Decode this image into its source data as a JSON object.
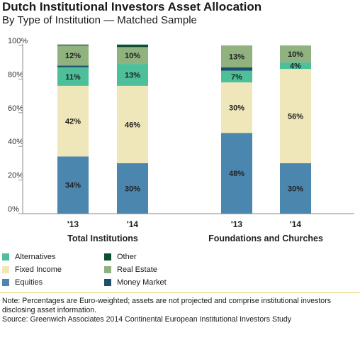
{
  "chart_data": {
    "type": "bar",
    "stacked": true,
    "title": "Dutch Institutional Investors Asset Allocation",
    "subtitle": "By Type of Institution — Matched Sample",
    "ylim": [
      0,
      100
    ],
    "yticks": [
      "0%",
      "20%",
      "40%",
      "60%",
      "80%",
      "100%"
    ],
    "groups": [
      {
        "label": "Total Institutions",
        "categories": [
          "'13",
          "'14"
        ]
      },
      {
        "label": "Foundations and Churches",
        "categories": [
          "'13",
          "'14"
        ]
      }
    ],
    "categories": [
      "Total Institutions '13",
      "Total Institutions '14",
      "Foundations and Churches '13",
      "Foundations and Churches '14"
    ],
    "series": [
      {
        "name": "Equities",
        "color": "#4a86ad",
        "values": [
          34,
          30,
          48,
          30
        ],
        "labels": [
          "34%",
          "30%",
          "48%",
          "30%"
        ]
      },
      {
        "name": "Fixed Income",
        "color": "#efe7b9",
        "values": [
          42,
          46,
          30,
          56
        ],
        "labels": [
          "42%",
          "46%",
          "30%",
          "56%"
        ]
      },
      {
        "name": "Alternatives",
        "color": "#4dbf9a",
        "values": [
          11,
          13,
          7,
          4
        ],
        "labels": [
          "11%",
          "13%",
          "7%",
          "4%"
        ]
      },
      {
        "name": "Money Market",
        "color": "#1e4e6e",
        "values": [
          1,
          0,
          2,
          0
        ],
        "labels": [
          "",
          "",
          "",
          ""
        ]
      },
      {
        "name": "Real Estate",
        "color": "#8fb27f",
        "values": [
          12,
          10,
          13,
          10
        ],
        "labels": [
          "12%",
          "10%",
          "13%",
          "10%"
        ]
      },
      {
        "name": "Other",
        "color": "#0b4f2f",
        "values": [
          0.5,
          1.5,
          0,
          0
        ],
        "labels": [
          "",
          "",
          "",
          ""
        ]
      }
    ],
    "legend": [
      {
        "name": "Alternatives",
        "color": "#4dbf9a"
      },
      {
        "name": "Other",
        "color": "#0b4f2f"
      },
      {
        "name": "Fixed Income",
        "color": "#efe7b9"
      },
      {
        "name": "Real Estate",
        "color": "#8fb27f"
      },
      {
        "name": "Equities",
        "color": "#4a86ad"
      },
      {
        "name": "Money Market",
        "color": "#1e4e6e"
      }
    ],
    "legend_position": "bottom-left",
    "grid": false
  },
  "notes": {
    "note": "Note: Percentages are Euro-weighted; assets are not projected and comprise institutional investors disclosing asset information.",
    "source": "Source: Greenwich Associates 2014 Continental European Institutional Investors Study"
  },
  "colors": {
    "divider": "#e8cf6a",
    "axis": "#555555"
  }
}
